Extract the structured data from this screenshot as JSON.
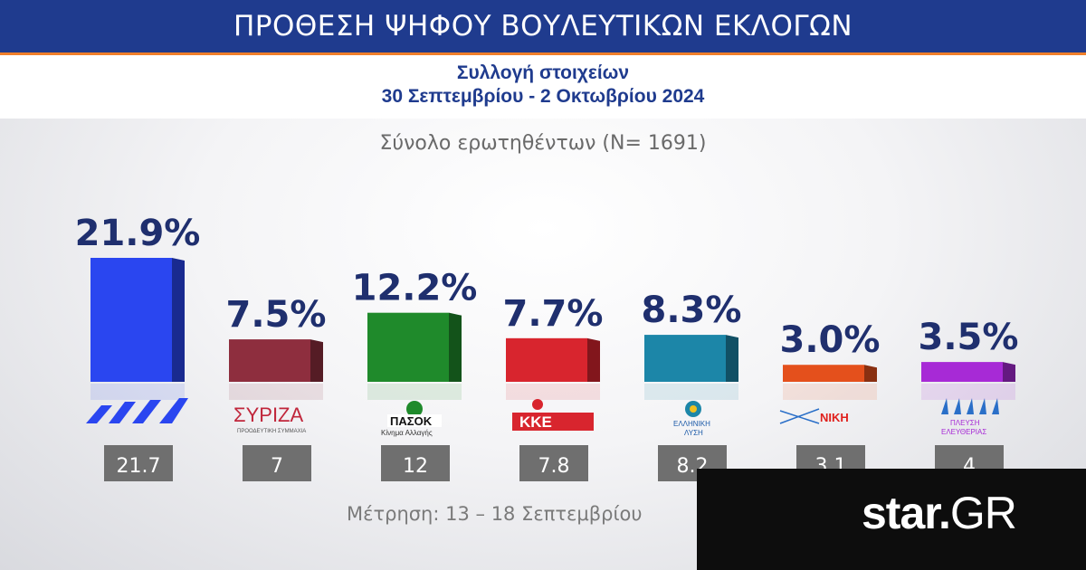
{
  "header": {
    "title": "ΠΡΟΘΕΣΗ ΨΗΦΟΥ ΒΟΥΛΕΥΤΙΚΩΝ ΕΚΛΟΓΩΝ",
    "subtitle_line1": "Συλλογή στοιχείων",
    "subtitle_line2": "30 Σεπτεμβρίου  - 2 Οκτωβρίου 2024",
    "total": "Σύνολο ερωτηθέντων (Ν= 1691)"
  },
  "footer": {
    "measurement": "Μέτρηση: 13 – 18 Σεπτεμβρίου",
    "logo_main": "star",
    "logo_dot": ".",
    "logo_suffix": "GR"
  },
  "chart_data": {
    "type": "bar",
    "categories": [
      "ΝΔ",
      "ΣΥΡΙΖΑ",
      "ΠΑΣΟΚ",
      "ΚΚΕ",
      "ΕΛΛΗΝΙΚΗ ΛΥΣΗ",
      "ΝΙΚΗ",
      "ΠΛΕΥΣΗ ΕΛΕΥΘΕΡΙΑΣ"
    ],
    "values": [
      21.9,
      7.5,
      12.2,
      7.7,
      8.3,
      3.0,
      3.5
    ],
    "value_labels": [
      "21.9%",
      "7.5%",
      "12.2%",
      "7.7%",
      "8.3%",
      "3.0%",
      "3.5%"
    ],
    "previous_values": [
      21.7,
      7,
      12,
      7.8,
      8.2,
      3.1,
      4
    ],
    "previous_labels": [
      "21.7",
      "7",
      "12",
      "7.8",
      "8.2",
      "3.1",
      "4"
    ],
    "colors": [
      "#2a46f0",
      "#8e2e3e",
      "#1f8a2b",
      "#d8252e",
      "#1c86a8",
      "#e4501c",
      "#a72ad6"
    ],
    "ylim": [
      0,
      21.9
    ]
  },
  "logos": {
    "nd": "",
    "syriza": "ΣΥΡΙΖΑ",
    "syriza_sub": "ΠΡΟΟΔΕΥΤΙΚΗ ΣΥΜΜΑΧΙΑ",
    "pasok": "ΠΑΣΟΚ",
    "pasok_sub": "Κίνημα Αλλαγής",
    "kke": "ΚΚΕ",
    "ellisi_1": "ΕΛΛΗΝΙΚΗ",
    "ellisi_2": "ΛΥΣΗ",
    "niki": "ΝΙΚΗ",
    "plefsi_1": "ΠΛΕΥΣΗ",
    "plefsi_2": "ΕΛΕΥΘΕΡΙΑΣ"
  }
}
